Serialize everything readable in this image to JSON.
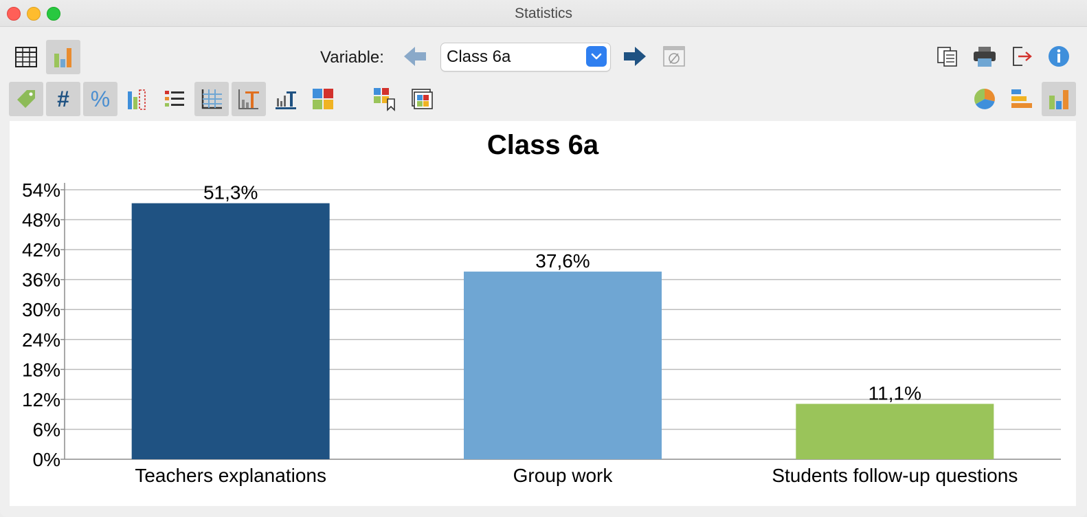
{
  "window": {
    "title": "Statistics"
  },
  "toolbar": {
    "variable_label": "Variable:",
    "variable_value": "Class 6a"
  },
  "chart_data": {
    "type": "bar",
    "title": "Class 6a",
    "categories": [
      "Teachers explanations",
      "Group work",
      "Students follow-up questions"
    ],
    "values": [
      51.3,
      37.6,
      11.1
    ],
    "value_labels": [
      "51,3%",
      "37,6%",
      "11,1%"
    ],
    "colors": [
      "#1f5282",
      "#6fa6d3",
      "#9ac45a"
    ],
    "ylim": [
      0,
      54
    ],
    "yticks": [
      0,
      6,
      12,
      18,
      24,
      30,
      36,
      42,
      48,
      54
    ],
    "ytick_labels": [
      "0%",
      "6%",
      "12%",
      "18%",
      "24%",
      "30%",
      "36%",
      "42%",
      "48%",
      "54%"
    ],
    "grid": true,
    "xlabel": "",
    "ylabel": ""
  }
}
